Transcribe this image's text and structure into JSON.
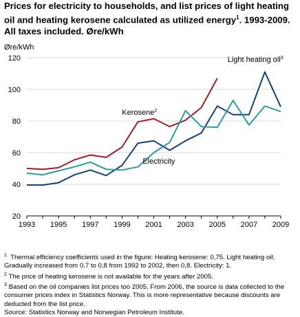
{
  "title": {
    "text": "Prices for electricity to households, and list prices of light heating oil and heating kerosene calculated as utilized energy",
    "sup": "1",
    "rest": ". 1993-2009. All taxes included. Øre/kWh"
  },
  "chart_data": {
    "type": "line",
    "ylabel": "Øre/kWh",
    "ylim": [
      20,
      120
    ],
    "yticks": [
      20,
      40,
      60,
      80,
      100,
      120
    ],
    "xlim": [
      1993,
      2009
    ],
    "xticks": [
      1993,
      1995,
      1997,
      1999,
      2001,
      2003,
      2005,
      2007,
      2009
    ],
    "grid": true,
    "series": [
      {
        "name": "Kerosene",
        "label_sup": "2",
        "color": "#9e1c2b",
        "x": [
          1993,
          1994,
          1995,
          1996,
          1997,
          1998,
          1999,
          2000,
          2001,
          2002,
          2003,
          2004,
          2005
        ],
        "values": [
          50,
          49.5,
          50.5,
          55.5,
          58.5,
          57,
          63.5,
          79.5,
          81.5,
          76.5,
          80.5,
          88.5,
          107
        ]
      },
      {
        "name": "Light heating oil",
        "label_sup": "3",
        "color": "#123f7e",
        "x": [
          1993,
          1994,
          1995,
          1996,
          1997,
          1998,
          1999,
          2000,
          2001,
          2002,
          2003,
          2004,
          2005,
          2006,
          2007,
          2008,
          2009
        ],
        "values": [
          39.5,
          39.5,
          41,
          46,
          49,
          45.5,
          52,
          66,
          67.5,
          61.5,
          67.5,
          72.5,
          89.5,
          84,
          84,
          111,
          89
        ]
      },
      {
        "name": "Electricity",
        "label_sup": "",
        "color": "#2a9d9a",
        "x": [
          1993,
          1994,
          1995,
          1996,
          1997,
          1998,
          1999,
          2000,
          2001,
          2002,
          2003,
          2004,
          2005,
          2006,
          2007,
          2008,
          2009
        ],
        "values": [
          47,
          46,
          48.5,
          51,
          54,
          49.5,
          49,
          51,
          60,
          66.5,
          86.5,
          76.5,
          76,
          93,
          77.5,
          89.5,
          86
        ]
      }
    ]
  },
  "footnotes": [
    {
      "sup": "1",
      "text": "Thermal efficiency coefficients used in the figure: Heating kerosene: 0,75. Light heating oil; Gradually increased from 0,7 to 0,8 from 1992 to 2002, then 0,8. Electricity: 1."
    },
    {
      "sup": "2",
      "text": "The price of heating kerosene is not available for the years after 2005."
    },
    {
      "sup": "3",
      "text": "Based on the oil companies list prices too 2005. From 2006, the source is data collected to the consumer prices index in Statistics Norway. This is more representative because discounts are deducted from the list price."
    }
  ],
  "source": "Source: Statistics Norway and Norwegian Petroleum Institute."
}
